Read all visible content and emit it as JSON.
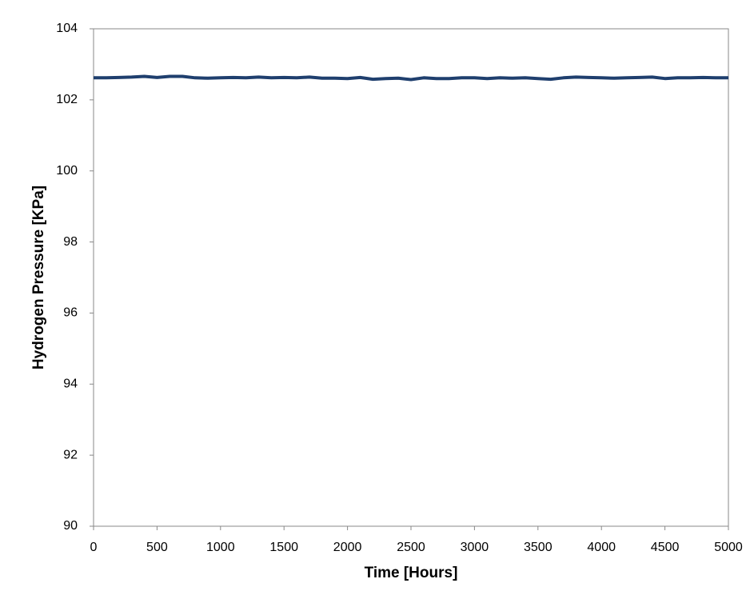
{
  "chart_data": {
    "type": "line",
    "xlabel": "Time [Hours]",
    "ylabel": "Hydrogen Pressure [KPa]",
    "xlim": [
      0,
      5000
    ],
    "xticks": [
      0,
      500,
      1000,
      1500,
      2000,
      2500,
      3000,
      3500,
      4000,
      4500,
      5000
    ],
    "ylim": [
      90,
      104
    ],
    "yticks": [
      90,
      92,
      94,
      96,
      98,
      100,
      102,
      104
    ],
    "grid": false,
    "series": [
      {
        "color": "#1f3f6e",
        "x": [
          0,
          100,
          200,
          300,
          400,
          500,
          600,
          700,
          800,
          900,
          1000,
          1100,
          1200,
          1300,
          1400,
          1500,
          1600,
          1700,
          1800,
          1900,
          2000,
          2100,
          2200,
          2300,
          2400,
          2500,
          2600,
          2700,
          2800,
          2900,
          3000,
          3100,
          3200,
          3300,
          3400,
          3500,
          3600,
          3700,
          3800,
          3900,
          4000,
          4100,
          4200,
          4300,
          4400,
          4500,
          4600,
          4700,
          4800,
          4900,
          5000
        ],
        "values": [
          102.62,
          102.62,
          102.63,
          102.64,
          102.66,
          102.63,
          102.66,
          102.66,
          102.62,
          102.61,
          102.62,
          102.63,
          102.62,
          102.64,
          102.62,
          102.63,
          102.62,
          102.64,
          102.61,
          102.61,
          102.6,
          102.63,
          102.58,
          102.6,
          102.61,
          102.57,
          102.62,
          102.6,
          102.6,
          102.62,
          102.62,
          102.6,
          102.62,
          102.61,
          102.62,
          102.6,
          102.58,
          102.62,
          102.64,
          102.63,
          102.62,
          102.61,
          102.62,
          102.63,
          102.64,
          102.6,
          102.62,
          102.62,
          102.63,
          102.62,
          102.62
        ]
      }
    ]
  }
}
